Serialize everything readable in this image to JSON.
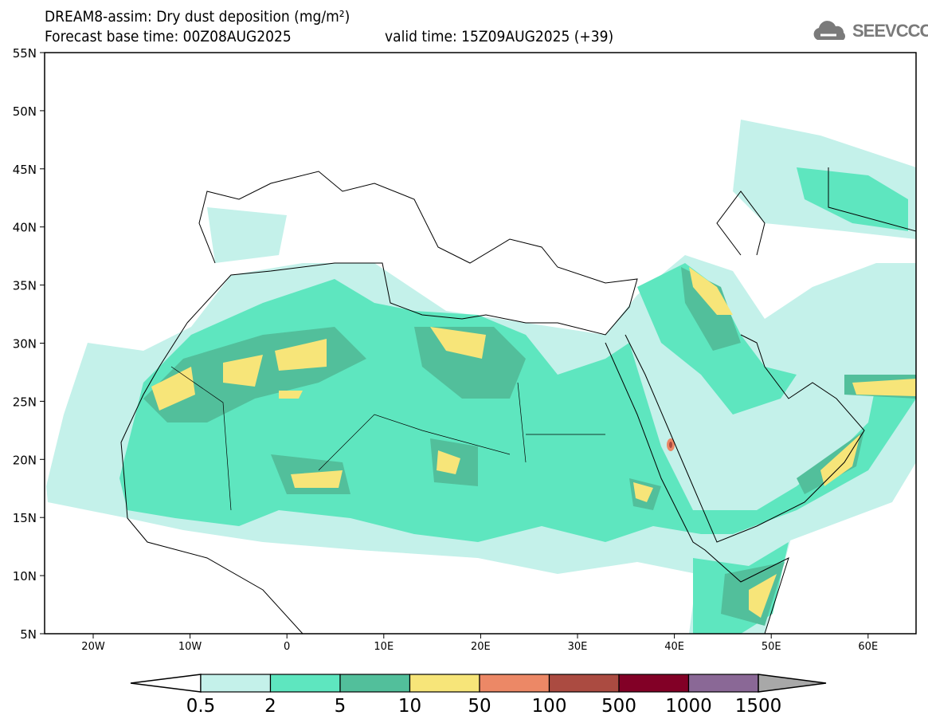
{
  "title": "DREAM8-assim: Dry dust deposition (mg/m²)",
  "subtitle_base": "Forecast base time: 00Z08AUG2025",
  "subtitle_valid": "valid time: 15Z09AUG2025 (+39)",
  "logo": "SEEVCCC",
  "lat_labels": [
    "55N",
    "50N",
    "45N",
    "40N",
    "35N",
    "30N",
    "25N",
    "20N",
    "15N",
    "10N",
    "5N"
  ],
  "lon_labels": [
    "20W",
    "10W",
    "0",
    "10E",
    "20E",
    "30E",
    "40E",
    "50E",
    "60E"
  ],
  "legend": {
    "labels": [
      "0.5",
      "2",
      "5",
      "10",
      "50",
      "100",
      "500",
      "1000",
      "1500"
    ],
    "colors": [
      "#c4f1ea",
      "#5ee6bf",
      "#52bf9b",
      "#f7e579",
      "#ec8866",
      "#ab4b41",
      "#820026",
      "#8a6896",
      "#a8a8a8"
    ]
  }
}
